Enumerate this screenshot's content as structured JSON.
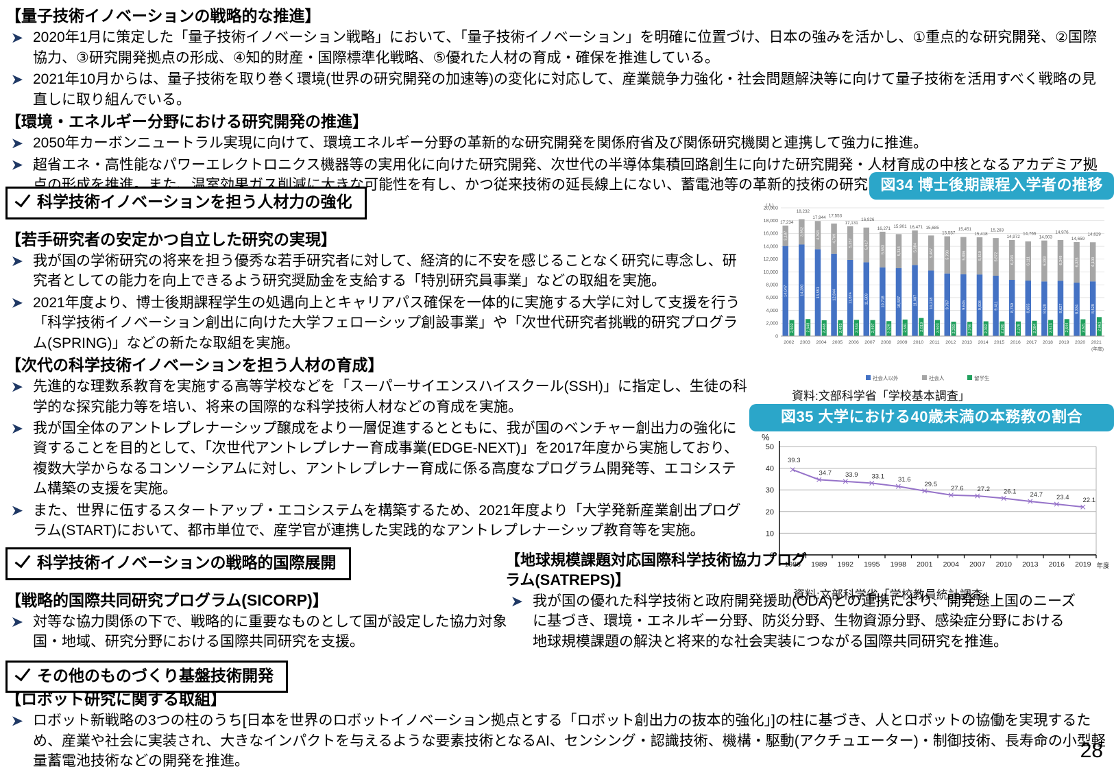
{
  "page_number": "28",
  "colors": {
    "badge_teal": "#2BA6C9",
    "bullet_arrow_navy": "#1F3864",
    "bar_blue": "#4472C4",
    "bar_gray": "#A6A6A6",
    "bar_green": "#21A05E",
    "line_purple": "#9673C9"
  },
  "sections": {
    "quantum": {
      "heading": "【量子技術イノベーションの戦略的な推進】",
      "bullets": [
        "2020年1月に策定した「量子技術イノベーション戦略」において、「量子技術イノベーション」を明確に位置づけ、日本の強みを活かし、①重点的な研究開発、②国際協力、③研究開発拠点の形成、④知的財産・国際標準化戦略、⑤優れた人材の育成・確保を推進している。",
        "2021年10月からは、量子技術を取り巻く環境(世界の研究開発の加速等)の変化に対応して、産業競争力強化・社会問題解決等に向けて量子技術を活用すべく戦略の見直しに取り組んでいる。"
      ]
    },
    "energy": {
      "heading": "【環境・エネルギー分野における研究開発の推進】",
      "bullets": [
        "2050年カーボンニュートラル実現に向けて、環境エネルギー分野の革新的な研究開発を関係府省及び関係研究機関と連携して強力に推進。",
        "超省エネ・高性能なパワーエレクトロニクス機器等の実用化に向けた研究開発、次世代の半導体集積回路創生に向けた研究開発・人材育成の中核となるアカデミア拠点の形成を推進。また、温室効果ガス削減に大きな可能性を有し、かつ従来技術の延長線上にない、蓄電池等の革新的技術の研究開発を推進。"
      ]
    },
    "box_talent": {
      "label": "科学技術イノベーションを担う人材力の強化"
    },
    "young": {
      "heading": "【若手研究者の安定かつ自立した研究の実現】",
      "bullets": [
        "我が国の学術研究の将来を担う優秀な若手研究者に対して、経済的に不安を感じることなく研究に専念し、研究者としての能力を向上できるよう研究奨励金を支給する「特別研究員事業」などの取組を実施。",
        "2021年度より、博士後期課程学生の処遇向上とキャリアパス確保を一体的に実施する大学に対して支援を行う「科学技術イノベーション創出に向けた大学フェローシップ創設事業」や「次世代研究者挑戦的研究プログラム(SPRING)」などの新たな取組を実施。"
      ]
    },
    "nextgen": {
      "heading": "【次代の科学技術イノベーションを担う人材の育成】",
      "bullets": [
        "先進的な理数系教育を実施する高等学校などを「スーパーサイエンスハイスクール(SSH)」に指定し、生徒の科学的な探究能力等を培い、将来の国際的な科学技術人材などの育成を実施。",
        "我が国全体のアントレプレナーシップ醸成をより一層促進するとともに、我が国のベンチャー創出力の強化に資することを目的として、「次世代アントレプレナー育成事業(EDGE-NEXT)」を2017年度から実施しており、複数大学からなるコンソーシアムに対し、アントレプレナー育成に係る高度なプログラム開発等、エコシステム構築の支援を実施。",
        "また、世界に伍するスタートアップ・エコシステムを構築するため、2021年度より「大学発新産業創出プログラム(START)において、都市単位で、産学官が連携した実践的なアントレプレナーシップ教育等を実施。"
      ]
    },
    "box_intl": {
      "label": "科学技術イノベーションの戦略的国際展開"
    },
    "sicorp": {
      "heading": "【戦略的国際共同研究プログラム(SICORP)】",
      "bullets": [
        "対等な協力関係の下で、戦略的に重要なものとして国が設定した協力対象国・地域、研究分野における国際共同研究を支援。"
      ]
    },
    "satreps": {
      "heading": "【地球規模課題対応国際科学技術協力プログラム(SATREPS)】",
      "bullets": [
        "我が国の優れた科学技術と政府開発援助(ODA)との連携により、開発途上国のニーズに基づき、環境・エネルギー分野、防災分野、生物資源分野、感染症分野における地球規模課題の解決と将来的な社会実装につながる国際共同研究を推進。"
      ]
    },
    "box_monozukuri": {
      "label": "その他のものづくり基盤技術開発"
    },
    "robot": {
      "heading": "【ロボット研究に関する取組】",
      "bullets": [
        "ロボット新戦略の3つの柱のうち[日本を世界のロボットイノベーション拠点とする「ロボット創出力の抜本的強化」]の柱に基づき、人とロボットの協働を実現するため、産業や社会に実装され、大きなインパクトを与えるような要素技術となるAI、センシング・認識技術、機構・駆動(アクチュエーター)・制御技術、長寿命の小型軽量蓄電池技術などの開発を推進。"
      ]
    }
  },
  "figures": {
    "fig34": {
      "badge": "図34  博士後期課程入学者の推移",
      "source": "資料:文部科学省「学校基本調査」"
    },
    "fig35": {
      "badge": "図35 大学における40歳未満の本務教の割合",
      "source": "資料:文部科学省「学校教員統計調査」"
    }
  },
  "chart_data": [
    {
      "type": "bar",
      "title": "図34 博士後期課程入学者の推移",
      "y_unit": "(人)",
      "x_unit": "(年度)",
      "ylim": [
        0,
        20000
      ],
      "ytick": 2000,
      "grid": true,
      "legend_position": "bottom",
      "categories": [
        "2002",
        "2003",
        "2004",
        "2005",
        "2006",
        "2007",
        "2008",
        "2009",
        "2010",
        "2011",
        "2012",
        "2013",
        "2014",
        "2015",
        "2016",
        "2017",
        "2018",
        "2019",
        "2020",
        "2021"
      ],
      "totals": [
        17234,
        18232,
        17944,
        17553,
        17131,
        16926,
        16271,
        15901,
        16471,
        15685,
        15557,
        15451,
        15418,
        15283,
        14972,
        14766,
        14903,
        14976,
        14659,
        14629
      ],
      "series": [
        {
          "name": "社会人以外",
          "values": [
            14047,
            14280,
            13551,
            12844,
            11874,
            11509,
            10718,
            10587,
            11087,
            10218,
            9767,
            9645,
            9608,
            9411,
            8769,
            8655,
            8520,
            8627,
            8334,
            8529
          ]
        },
        {
          "name": "社会人",
          "values": [
            3187,
            3952,
            4393,
            4709,
            5257,
            5417,
            5553,
            5314,
            5384,
            5467,
            5790,
            5806,
            5810,
            5872,
            6203,
            6111,
            6383,
            6349,
            6325,
            6100
          ]
        },
        {
          "name": "留学生",
          "values": [
            2502,
            2648,
            2468,
            2483,
            2534,
            2497,
            2329,
            2581,
            2819,
            2503,
            2250,
            2236,
            2302,
            2290,
            2278,
            2384,
            2513,
            2644,
            2621,
            2961
          ]
        }
      ],
      "colors": [
        "#4472C4",
        "#A6A6A6",
        "#21A05E"
      ],
      "source": "資料:文部科学省「学校基本調査」"
    },
    {
      "type": "line",
      "title": "図35 大学における40歳未満の本務教の割合",
      "ylabel": "%",
      "xlabel": "年度",
      "ylim": [
        0,
        50
      ],
      "ytick": 10,
      "grid": true,
      "x": [
        1986,
        1989,
        1992,
        1995,
        1998,
        2001,
        2004,
        2007,
        2010,
        2013,
        2016,
        2019
      ],
      "values": [
        39.3,
        34.7,
        33.9,
        33.1,
        31.6,
        29.5,
        27.6,
        27.2,
        26.1,
        24.7,
        23.4,
        22.1
      ],
      "color": "#9673C9",
      "marker": "x",
      "source": "資料:文部科学省「学校教員統計調査」"
    }
  ]
}
